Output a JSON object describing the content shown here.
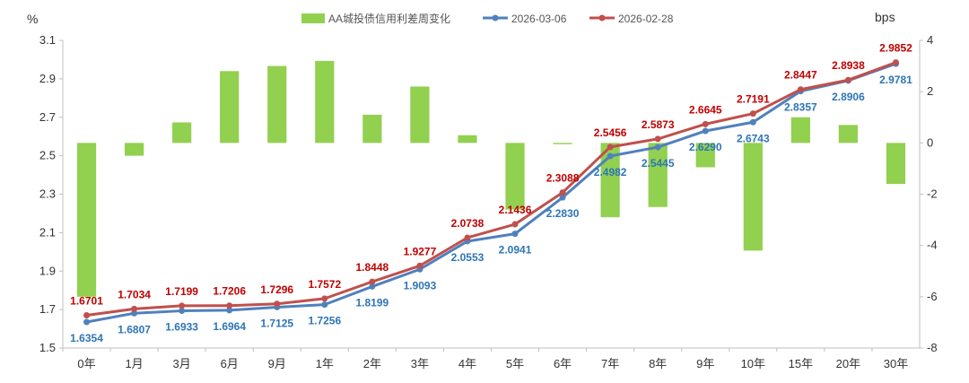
{
  "chart_data": {
    "type": "bar+line",
    "title": "",
    "categories": [
      "0年",
      "1月",
      "3月",
      "6月",
      "9月",
      "1年",
      "2年",
      "3年",
      "4年",
      "5年",
      "6年",
      "7年",
      "8年",
      "9年",
      "10年",
      "15年",
      "20年",
      "30年"
    ],
    "left_axis": {
      "label": "%",
      "ylim": [
        1.5,
        3.1
      ],
      "ticks": [
        "1.5",
        "1.7",
        "1.9",
        "2.1",
        "2.3",
        "2.5",
        "2.7",
        "2.9",
        "3.1"
      ]
    },
    "right_axis": {
      "label": "bps",
      "ylim": [
        -8,
        4
      ],
      "ticks": [
        "-8",
        "-6",
        "-4",
        "-2",
        "0",
        "2",
        "4"
      ]
    },
    "legend": {
      "position": "top",
      "entries": [
        "AA城投债信用利差周变化",
        "2026-03-06",
        "2026-02-28"
      ]
    },
    "series": [
      {
        "name": "AA城投债信用利差周变化",
        "type": "bar",
        "axis": "right",
        "color": "#92D050",
        "values": [
          -6.0,
          -0.5,
          0.8,
          2.8,
          3.0,
          3.2,
          1.1,
          2.2,
          0.3,
          -2.6,
          -0.05,
          -2.9,
          -2.5,
          -0.95,
          -4.2,
          1.0,
          0.7,
          -1.6
        ]
      },
      {
        "name": "2026-03-06",
        "type": "line",
        "axis": "left",
        "color": "#4F81BD",
        "label_color": "#2E75B6",
        "values": [
          1.6354,
          1.6807,
          1.6933,
          1.6964,
          1.7125,
          1.7256,
          1.8199,
          1.9093,
          2.0553,
          2.0941,
          2.283,
          2.4982,
          2.5445,
          2.629,
          2.6743,
          2.8357,
          2.8906,
          2.9781
        ],
        "labels": [
          "1.6354",
          "1.6807",
          "1.6933",
          "1.6964",
          "1.7125",
          "1.7256",
          "1.8199",
          "1.9093",
          "2.0553",
          "2.0941",
          "2.2830",
          "2.4982",
          "2.5445",
          "2.6290",
          "2.6743",
          "2.8357",
          "2.8906",
          "2.9781"
        ]
      },
      {
        "name": "2026-02-28",
        "type": "line",
        "axis": "left",
        "color": "#C0504D",
        "label_color": "#C00000",
        "values": [
          1.6701,
          1.7034,
          1.7199,
          1.7206,
          1.7296,
          1.7572,
          1.8448,
          1.9277,
          2.0738,
          2.1436,
          2.3088,
          2.5456,
          2.5873,
          2.6645,
          2.7191,
          2.8447,
          2.8938,
          2.9852
        ],
        "labels": [
          "1.6701",
          "1.7034",
          "1.7199",
          "1.7206",
          "1.7296",
          "1.7572",
          "1.8448",
          "1.9277",
          "2.0738",
          "2.1436",
          "2.3088",
          "2.5456",
          "2.5873",
          "2.6645",
          "2.7191",
          "2.8447",
          "2.8938",
          "2.9852"
        ]
      }
    ]
  }
}
